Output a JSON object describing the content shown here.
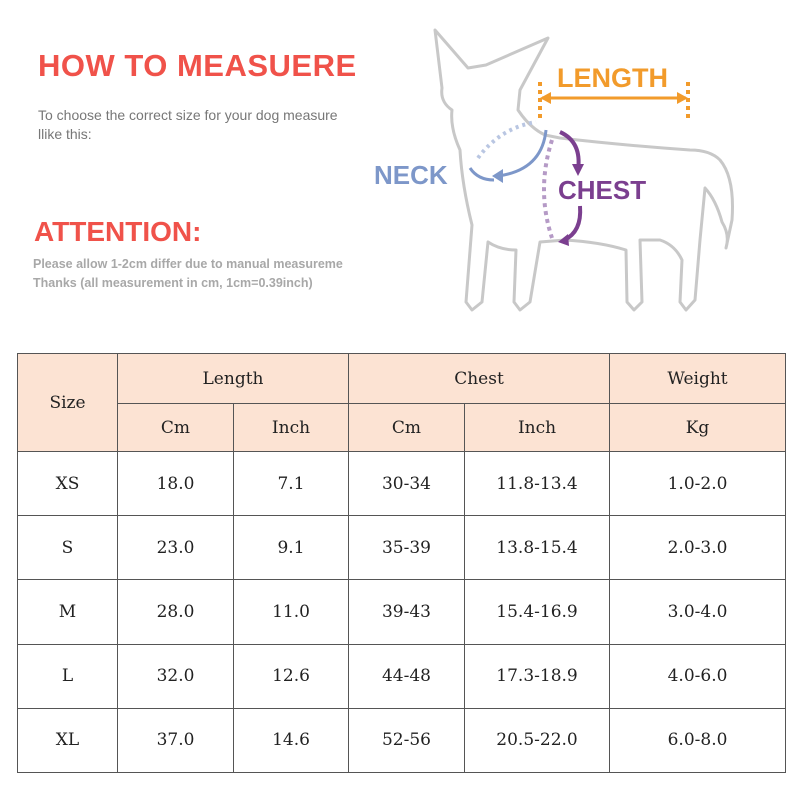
{
  "header": {
    "title": "HOW TO MEASUERE",
    "subtitle": "To choose the correct size for your dog measure llike this:",
    "attention_title": "ATTENTION:",
    "note_line1": "Please allow 1-2cm differ due to manual measureme",
    "note_line2": "Thanks (all measurement in cm, 1cm=0.39inch)"
  },
  "diagram": {
    "length_label": "LENGTH",
    "neck_label": "NECK",
    "chest_label": "CHEST",
    "colors": {
      "length": "#f29b2b",
      "neck": "#7d97c9",
      "chest": "#7b3f8f",
      "chest_dotted": "#b59ac6",
      "dog_outline": "#c8c8c8"
    }
  },
  "table": {
    "size_header": "Size",
    "groups": {
      "length": "Length",
      "chest": "Chest",
      "weight": "Weight"
    },
    "units": {
      "length_cm": "Cm",
      "length_inch": "Inch",
      "chest_cm": "Cm",
      "chest_inch": "Inch",
      "weight_kg": "Kg"
    },
    "header_bg": "#fce3d3",
    "rows": [
      {
        "size": "XS",
        "length_cm": "18.0",
        "length_inch": "7.1",
        "chest_cm": "30-34",
        "chest_inch": "11.8-13.4",
        "weight": "1.0-2.0"
      },
      {
        "size": "S",
        "length_cm": "23.0",
        "length_inch": "9.1",
        "chest_cm": "35-39",
        "chest_inch": "13.8-15.4",
        "weight": "2.0-3.0"
      },
      {
        "size": "M",
        "length_cm": "28.0",
        "length_inch": "11.0",
        "chest_cm": "39-43",
        "chest_inch": "15.4-16.9",
        "weight": "3.0-4.0"
      },
      {
        "size": "L",
        "length_cm": "32.0",
        "length_inch": "12.6",
        "chest_cm": "44-48",
        "chest_inch": "17.3-18.9",
        "weight": "4.0-6.0"
      },
      {
        "size": "XL",
        "length_cm": "37.0",
        "length_inch": "14.6",
        "chest_cm": "52-56",
        "chest_inch": "20.5-22.0",
        "weight": "6.0-8.0"
      }
    ]
  }
}
